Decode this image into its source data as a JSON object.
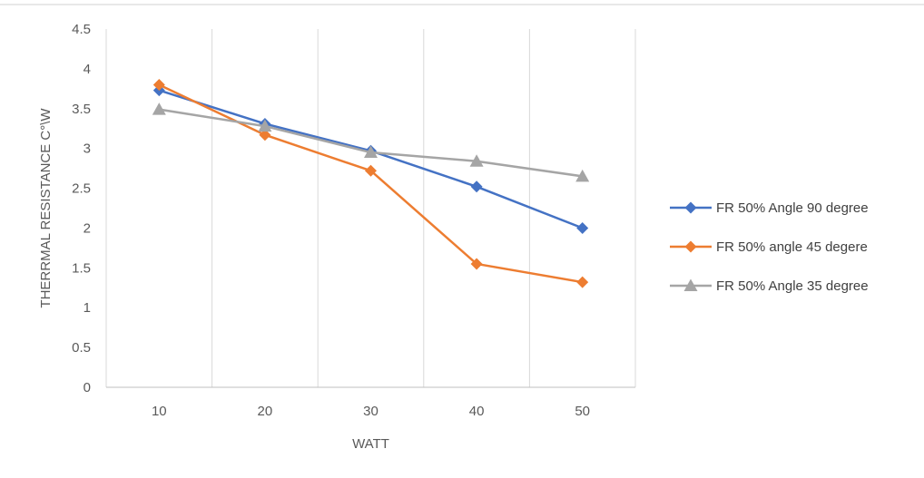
{
  "chart_data": {
    "type": "line",
    "title": "",
    "xlabel": "WATT",
    "ylabel": "THERRMAL RESISTANCE C°\\W",
    "categories": [
      "10",
      "20",
      "30",
      "40",
      "50"
    ],
    "ylim": [
      0,
      4.5
    ],
    "yticks": [
      "0",
      "0.5",
      "1",
      "1.5",
      "2",
      "2.5",
      "3",
      "3.5",
      "4",
      "4.5"
    ],
    "grid": "vertical",
    "legend_position": "right",
    "series": [
      {
        "name": "FR 50% Angle 90 degree",
        "values": [
          3.73,
          3.31,
          2.97,
          2.52,
          2.0
        ],
        "color": "#4472C4",
        "marker": "diamond"
      },
      {
        "name": "FR 50% angle 45 degere",
        "values": [
          3.8,
          3.17,
          2.72,
          1.55,
          1.32
        ],
        "color": "#ED7D31",
        "marker": "diamond"
      },
      {
        "name": "FR 50% Angle 35 degree",
        "values": [
          3.49,
          3.28,
          2.95,
          2.84,
          2.65
        ],
        "color": "#A5A5A5",
        "marker": "triangle"
      }
    ]
  }
}
